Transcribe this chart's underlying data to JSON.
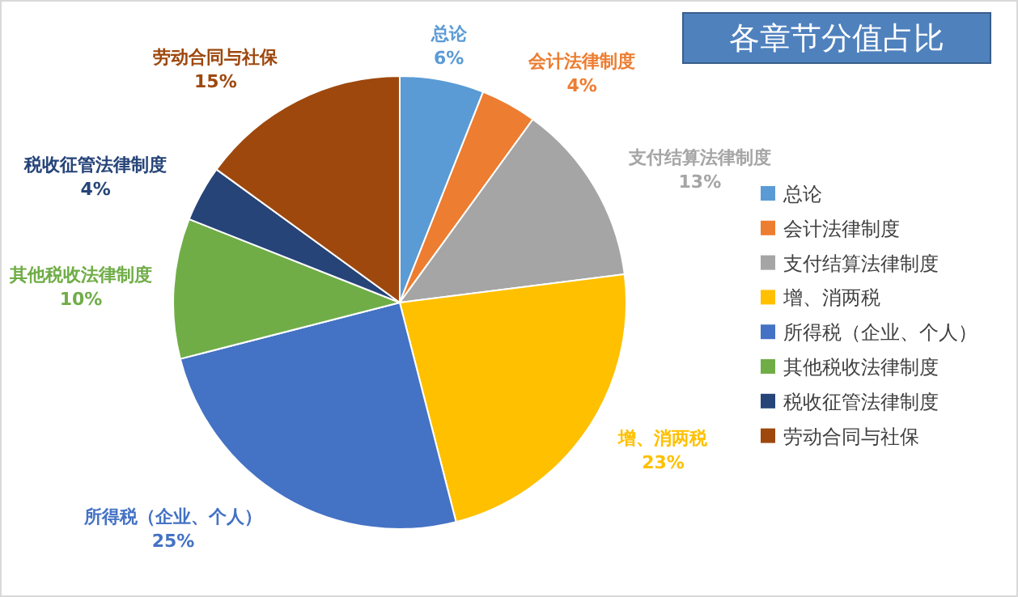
{
  "chart_data": {
    "type": "pie",
    "title": "各章节分值占比",
    "categories": [
      "总论",
      "会计法律制度",
      "支付结算法律制度",
      "增、消两税",
      "所得税（企业、个人）",
      "其他税收法律制度",
      "税收征管法律制度",
      "劳动合同与社保"
    ],
    "values": [
      6,
      4,
      13,
      23,
      25,
      10,
      4,
      15
    ],
    "colors": [
      "#5b9bd5",
      "#ed7d31",
      "#a5a5a5",
      "#ffc000",
      "#4472c4",
      "#70ad47",
      "#264478",
      "#9e480e"
    ],
    "value_labels": [
      "6%",
      "4%",
      "13%",
      "23%",
      "25%",
      "10%",
      "4%",
      "15%"
    ],
    "legend": "right"
  }
}
